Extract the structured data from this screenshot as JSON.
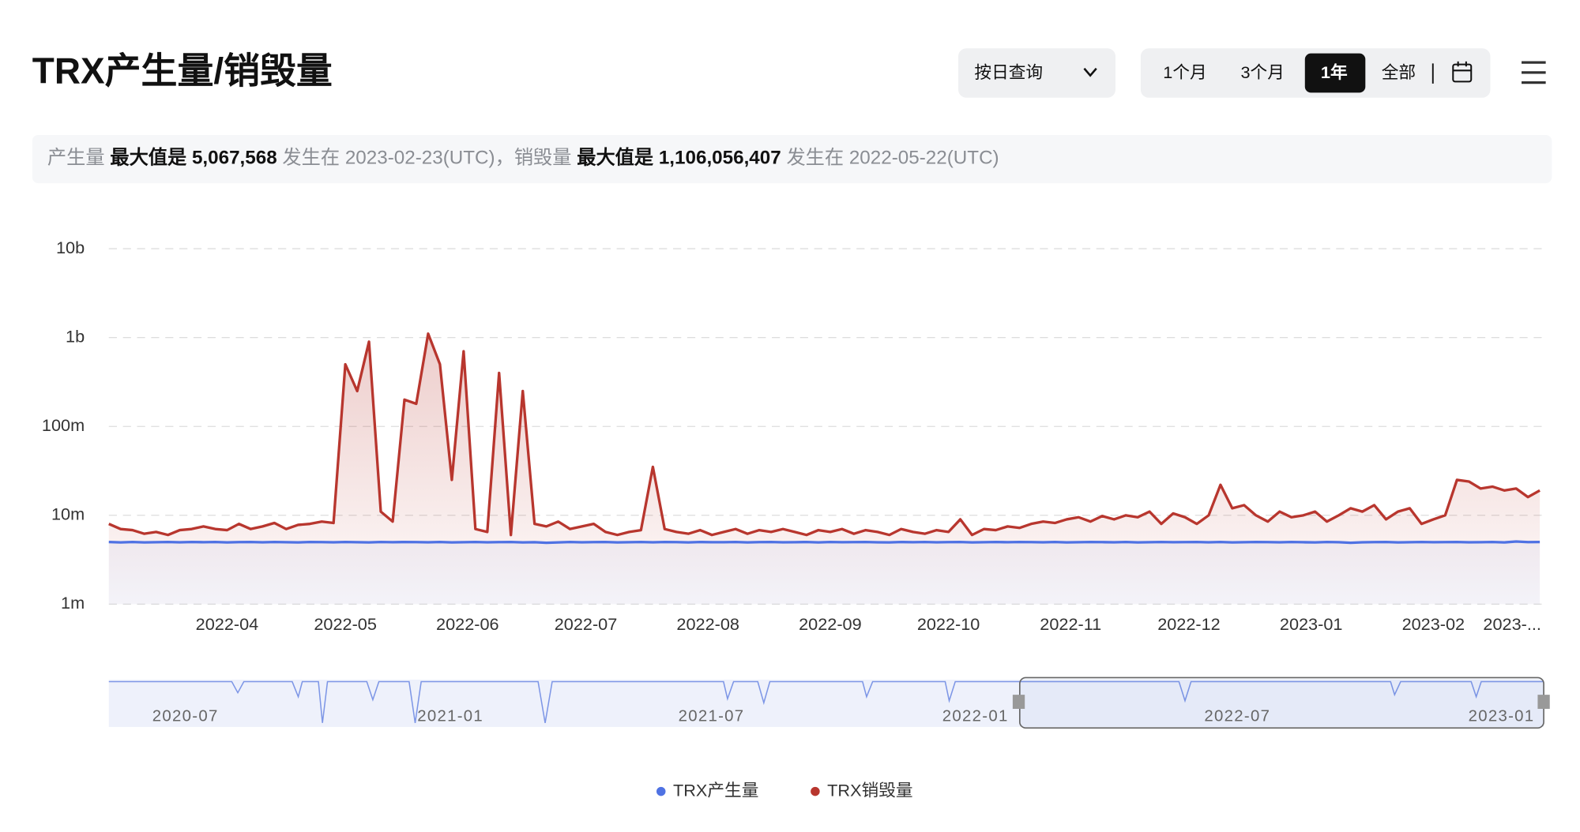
{
  "header": {
    "title": "TRX产生量/销毁量",
    "query_select": "按日查询",
    "ranges": [
      "1个月",
      "3个月",
      "1年",
      "全部"
    ],
    "active_range": 2
  },
  "summary": {
    "prefix_1": "产生量",
    "max_1": "最大值是 5,067,568",
    "date_1": "发生在 2023-02-23(UTC)，销毁量",
    "max_2": "最大值是 1,106,056,407",
    "date_2": "发生在 2022-05-22(UTC)"
  },
  "navigator": {
    "labels": [
      "2020-07",
      "2021-01",
      "2021-07",
      "2022-01",
      "2022-07",
      "2023-01"
    ]
  },
  "chart_data": {
    "type": "line",
    "log_scale": true,
    "grid": true,
    "legend_position": "bottom",
    "x": [
      0,
      3,
      6,
      9,
      12,
      15,
      18,
      21,
      24,
      27,
      30,
      33,
      36,
      39,
      42,
      45,
      48,
      51,
      54,
      57,
      60,
      63,
      66,
      69,
      72,
      75,
      78,
      81,
      84,
      87,
      90,
      93,
      96,
      99,
      102,
      105,
      108,
      111,
      114,
      117,
      120,
      123,
      126,
      129,
      132,
      135,
      138,
      141,
      144,
      147,
      150,
      153,
      156,
      159,
      162,
      165,
      168,
      171,
      174,
      177,
      180,
      183,
      186,
      189,
      192,
      195,
      198,
      201,
      204,
      207,
      210,
      213,
      216,
      219,
      222,
      225,
      228,
      231,
      234,
      237,
      240,
      243,
      246,
      249,
      252,
      255,
      258,
      261,
      264,
      267,
      270,
      273,
      276,
      279,
      282,
      285,
      288,
      291,
      294,
      297,
      300,
      303,
      306,
      309,
      312,
      315,
      318,
      321,
      324,
      327,
      330,
      333,
      336,
      339,
      342,
      345,
      348,
      351,
      354,
      357,
      360,
      363
    ],
    "xlim": [
      0,
      364
    ],
    "xticks": [
      {
        "value": 30,
        "label": "2022-04"
      },
      {
        "value": 60,
        "label": "2022-05"
      },
      {
        "value": 91,
        "label": "2022-06"
      },
      {
        "value": 121,
        "label": "2022-07"
      },
      {
        "value": 152,
        "label": "2022-08"
      },
      {
        "value": 183,
        "label": "2022-09"
      },
      {
        "value": 213,
        "label": "2022-10"
      },
      {
        "value": 244,
        "label": "2022-11"
      },
      {
        "value": 274,
        "label": "2022-12"
      },
      {
        "value": 305,
        "label": "2023-01"
      },
      {
        "value": 336,
        "label": "2023-02"
      },
      {
        "value": 356,
        "label": "2023-..."
      }
    ],
    "ylim": [
      1000000,
      10000000000
    ],
    "yticks": [
      {
        "value": 1000000,
        "label": "1m"
      },
      {
        "value": 10000000,
        "label": "10m"
      },
      {
        "value": 100000000,
        "label": "100m"
      },
      {
        "value": 1000000000,
        "label": "1b"
      },
      {
        "value": 10000000000,
        "label": "10b"
      }
    ],
    "series": [
      {
        "name": "TRX产生量",
        "color": "#4f72e3",
        "values": [
          5000000,
          4950000,
          5000000,
          4950000,
          4980000,
          5000000,
          4960000,
          5000000,
          4970000,
          5000000,
          4950000,
          4990000,
          5000000,
          4960000,
          5000000,
          4980000,
          4950000,
          5000000,
          4990000,
          4960000,
          5000000,
          4980000,
          4950000,
          5000000,
          4970000,
          5000000,
          4990000,
          4960000,
          5000000,
          4950000,
          4980000,
          5000000,
          4960000,
          4990000,
          5000000,
          4950000,
          4980000,
          4900000,
          4950000,
          5000000,
          4960000,
          4990000,
          5000000,
          4950000,
          4980000,
          5000000,
          4960000,
          5000000,
          4990000,
          4950000,
          5000000,
          4970000,
          4980000,
          5000000,
          4950000,
          4990000,
          5000000,
          4960000,
          4980000,
          5000000,
          4950000,
          5000000,
          4970000,
          4990000,
          5000000,
          4960000,
          4950000,
          5000000,
          4980000,
          5000000,
          4960000,
          4990000,
          5000000,
          4950000,
          4980000,
          5000000,
          4970000,
          5000000,
          4990000,
          4960000,
          5000000,
          4950000,
          4980000,
          5000000,
          4990000,
          4960000,
          5000000,
          4950000,
          4980000,
          5000000,
          4970000,
          4990000,
          5000000,
          4960000,
          5000000,
          4950000,
          4980000,
          5000000,
          4990000,
          4960000,
          5000000,
          4970000,
          4950000,
          5000000,
          4980000,
          4900000,
          4960000,
          4990000,
          5000000,
          4950000,
          4980000,
          5000000,
          4970000,
          4990000,
          5000000,
          4960000,
          4980000,
          5000000,
          4950000,
          5067568,
          4990000,
          5000000
        ]
      },
      {
        "name": "TRX销毁量",
        "color": "#b8362e",
        "values": [
          8000000,
          7000000,
          6800000,
          6200000,
          6500000,
          6000000,
          6800000,
          7000000,
          7500000,
          7000000,
          6800000,
          8000000,
          7000000,
          7500000,
          8200000,
          7000000,
          7800000,
          8000000,
          8500000,
          8200000,
          500000000,
          250000000,
          900000000,
          11000000,
          8500000,
          200000000,
          180000000,
          1106056407,
          500000000,
          25000000,
          700000000,
          7000000,
          6500000,
          400000000,
          6000000,
          250000000,
          8000000,
          7500000,
          8500000,
          7000000,
          7500000,
          8000000,
          6500000,
          6000000,
          6500000,
          6800000,
          35000000,
          7000000,
          6500000,
          6200000,
          6800000,
          6000000,
          6500000,
          7000000,
          6200000,
          6800000,
          6500000,
          7000000,
          6500000,
          6000000,
          6800000,
          6500000,
          7000000,
          6200000,
          6800000,
          6500000,
          6000000,
          7000000,
          6500000,
          6200000,
          6800000,
          6500000,
          9000000,
          6000000,
          7000000,
          6800000,
          7500000,
          7200000,
          8000000,
          8500000,
          8200000,
          9000000,
          9500000,
          8500000,
          9800000,
          9000000,
          10000000,
          9500000,
          11000000,
          8000000,
          10500000,
          9500000,
          8000000,
          10000000,
          22000000,
          12000000,
          13000000,
          10000000,
          8500000,
          11000000,
          9500000,
          10000000,
          11000000,
          8500000,
          10000000,
          12000000,
          11000000,
          13000000,
          9000000,
          11000000,
          12000000,
          8000000,
          9000000,
          10000000,
          25000000,
          24000000,
          20000000,
          21000000,
          19000000,
          20000000,
          16000000,
          19000000
        ]
      }
    ]
  }
}
